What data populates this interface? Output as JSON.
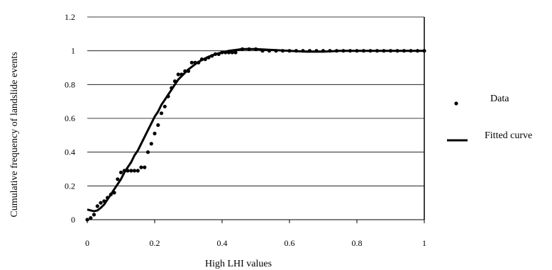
{
  "chart_data": {
    "type": "scatter",
    "title": "",
    "xlabel": "High LHI values",
    "ylabel": "Cumulative frequency of landslide events",
    "xlim": [
      0,
      1
    ],
    "ylim": [
      0,
      1.2
    ],
    "x_ticks": [
      "0",
      "0.2",
      "0.4",
      "0.6",
      "0.8",
      "1"
    ],
    "x_tick_values": [
      0,
      0.2,
      0.4,
      0.6,
      0.8,
      1
    ],
    "y_ticks": [
      "0",
      "0.2",
      "0.4",
      "0.6",
      "0.8",
      "1",
      "1.2"
    ],
    "y_tick_values": [
      0,
      0.2,
      0.4,
      0.6,
      0.8,
      1.0,
      1.2
    ],
    "grid": "horizontal",
    "legend_position": "right",
    "series": [
      {
        "name": "Data",
        "kind": "scatter",
        "color": "#000000",
        "points": [
          [
            0.0,
            0.0
          ],
          [
            0.01,
            0.01
          ],
          [
            0.02,
            0.03
          ],
          [
            0.03,
            0.08
          ],
          [
            0.04,
            0.1
          ],
          [
            0.05,
            0.11
          ],
          [
            0.06,
            0.13
          ],
          [
            0.07,
            0.15
          ],
          [
            0.08,
            0.16
          ],
          [
            0.09,
            0.24
          ],
          [
            0.1,
            0.28
          ],
          [
            0.11,
            0.29
          ],
          [
            0.12,
            0.29
          ],
          [
            0.13,
            0.29
          ],
          [
            0.14,
            0.29
          ],
          [
            0.15,
            0.29
          ],
          [
            0.16,
            0.31
          ],
          [
            0.17,
            0.31
          ],
          [
            0.18,
            0.4
          ],
          [
            0.19,
            0.45
          ],
          [
            0.2,
            0.51
          ],
          [
            0.21,
            0.56
          ],
          [
            0.22,
            0.63
          ],
          [
            0.23,
            0.67
          ],
          [
            0.24,
            0.73
          ],
          [
            0.25,
            0.78
          ],
          [
            0.26,
            0.82
          ],
          [
            0.27,
            0.86
          ],
          [
            0.28,
            0.86
          ],
          [
            0.29,
            0.88
          ],
          [
            0.3,
            0.88
          ],
          [
            0.31,
            0.93
          ],
          [
            0.32,
            0.93
          ],
          [
            0.33,
            0.93
          ],
          [
            0.34,
            0.95
          ],
          [
            0.35,
            0.95
          ],
          [
            0.36,
            0.96
          ],
          [
            0.37,
            0.97
          ],
          [
            0.38,
            0.98
          ],
          [
            0.39,
            0.98
          ],
          [
            0.4,
            0.99
          ],
          [
            0.41,
            0.99
          ],
          [
            0.42,
            0.99
          ],
          [
            0.43,
            0.99
          ],
          [
            0.44,
            0.99
          ],
          [
            0.46,
            1.01
          ],
          [
            0.48,
            1.01
          ],
          [
            0.5,
            1.01
          ],
          [
            0.52,
            1.0
          ],
          [
            0.54,
            1.0
          ],
          [
            0.56,
            1.0
          ],
          [
            0.58,
            1.0
          ],
          [
            0.6,
            1.0
          ],
          [
            0.62,
            1.0
          ],
          [
            0.64,
            1.0
          ],
          [
            0.66,
            1.0
          ],
          [
            0.68,
            1.0
          ],
          [
            0.7,
            1.0
          ],
          [
            0.72,
            1.0
          ],
          [
            0.74,
            1.0
          ],
          [
            0.76,
            1.0
          ],
          [
            0.78,
            1.0
          ],
          [
            0.8,
            1.0
          ],
          [
            0.82,
            1.0
          ],
          [
            0.84,
            1.0
          ],
          [
            0.86,
            1.0
          ],
          [
            0.88,
            1.0
          ],
          [
            0.9,
            1.0
          ],
          [
            0.92,
            1.0
          ],
          [
            0.94,
            1.0
          ],
          [
            0.96,
            1.0
          ],
          [
            0.98,
            1.0
          ],
          [
            1.0,
            1.0
          ]
        ]
      },
      {
        "name": "Fitted curve",
        "kind": "line",
        "color": "#000000",
        "points": [
          [
            0.0,
            0.06
          ],
          [
            0.01,
            0.055
          ],
          [
            0.02,
            0.05
          ],
          [
            0.03,
            0.055
          ],
          [
            0.04,
            0.07
          ],
          [
            0.05,
            0.09
          ],
          [
            0.06,
            0.12
          ],
          [
            0.07,
            0.15
          ],
          [
            0.08,
            0.18
          ],
          [
            0.09,
            0.21
          ],
          [
            0.1,
            0.24
          ],
          [
            0.11,
            0.28
          ],
          [
            0.12,
            0.31
          ],
          [
            0.13,
            0.34
          ],
          [
            0.14,
            0.38
          ],
          [
            0.15,
            0.41
          ],
          [
            0.16,
            0.45
          ],
          [
            0.17,
            0.49
          ],
          [
            0.18,
            0.53
          ],
          [
            0.19,
            0.57
          ],
          [
            0.2,
            0.61
          ],
          [
            0.21,
            0.64
          ],
          [
            0.22,
            0.68
          ],
          [
            0.23,
            0.71
          ],
          [
            0.24,
            0.74
          ],
          [
            0.25,
            0.77
          ],
          [
            0.26,
            0.8
          ],
          [
            0.27,
            0.83
          ],
          [
            0.28,
            0.85
          ],
          [
            0.29,
            0.87
          ],
          [
            0.3,
            0.89
          ],
          [
            0.31,
            0.905
          ],
          [
            0.32,
            0.92
          ],
          [
            0.33,
            0.935
          ],
          [
            0.34,
            0.945
          ],
          [
            0.35,
            0.955
          ],
          [
            0.36,
            0.965
          ],
          [
            0.37,
            0.972
          ],
          [
            0.38,
            0.98
          ],
          [
            0.39,
            0.985
          ],
          [
            0.4,
            0.99
          ],
          [
            0.42,
            1.0
          ],
          [
            0.44,
            1.005
          ],
          [
            0.46,
            1.01
          ],
          [
            0.5,
            1.01
          ],
          [
            0.55,
            1.005
          ],
          [
            0.6,
            1.0
          ],
          [
            0.65,
            0.995
          ],
          [
            0.7,
            0.995
          ],
          [
            0.75,
            1.0
          ],
          [
            0.8,
            1.0
          ],
          [
            0.85,
            1.0
          ],
          [
            0.9,
            1.0
          ],
          [
            0.95,
            1.0
          ],
          [
            1.0,
            1.0
          ]
        ]
      }
    ]
  }
}
